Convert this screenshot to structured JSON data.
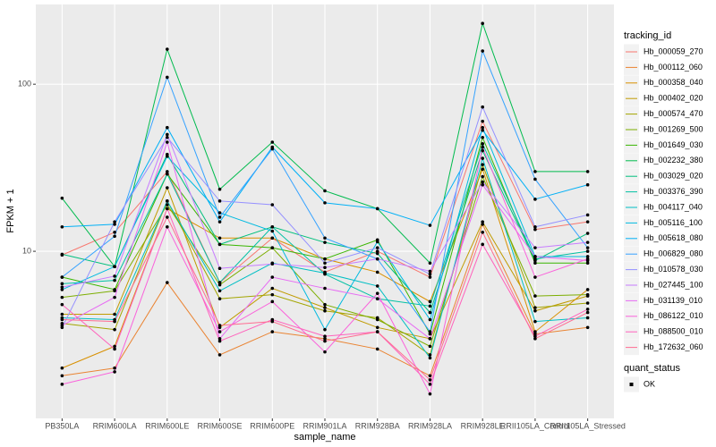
{
  "chart_data": {
    "type": "line",
    "x_label": "sample_name",
    "y_label": "FPKM + 1",
    "categories": [
      "PB350LA",
      "RRIM600LA",
      "RRIM600LE",
      "RRIM600SE",
      "RRIM600PE",
      "RRIM901LA",
      "RRIM928BA",
      "RRIM928LA",
      "RRIM928LE",
      "RRII105LA_Control",
      "RRII105LA_Stressed"
    ],
    "ylim": [
      1,
      300
    ],
    "yticks": [
      10,
      100
    ],
    "log_y": true,
    "grid": true,
    "legend_title": "tracking_id",
    "legend_position": "right",
    "point_legend_title": "quant_status",
    "point_legend_labels": [
      "OK"
    ],
    "point_color": "#000000",
    "series": [
      {
        "name": "Hb_000059_270",
        "color": "#F8766D",
        "values": [
          9.5,
          13,
          30,
          6.5,
          12,
          7.5,
          10,
          7,
          60,
          13.5,
          15
        ]
      },
      {
        "name": "Hb_000112_060",
        "color": "#EA8331",
        "values": [
          1.8,
          2.0,
          6.5,
          2.4,
          3.3,
          3.0,
          2.6,
          1.8,
          14.5,
          3.2,
          3.5
        ]
      },
      {
        "name": "Hb_000358_040",
        "color": "#D89000",
        "values": [
          2.0,
          2.7,
          18,
          12,
          12,
          9,
          7.5,
          5,
          31,
          3.3,
          5.9
        ]
      },
      {
        "name": "Hb_000402_020",
        "color": "#C09B00",
        "values": [
          4.2,
          4.2,
          24,
          3.5,
          6,
          4.6,
          3.5,
          3.0,
          15,
          4.4,
          5.4
        ]
      },
      {
        "name": "Hb_000574_470",
        "color": "#A3A500",
        "values": [
          3.7,
          3.4,
          20,
          5.2,
          5.5,
          4.4,
          4.0,
          2.4,
          33,
          4.6,
          4.9
        ]
      },
      {
        "name": "Hb_001269_500",
        "color": "#7CAE00",
        "values": [
          5.3,
          5.8,
          19,
          6.3,
          10.5,
          4.8,
          3.9,
          2.7,
          28,
          5.4,
          5.5
        ]
      },
      {
        "name": "Hb_001649_030",
        "color": "#39B600",
        "values": [
          7.0,
          5.9,
          29,
          11,
          10.5,
          9,
          11.7,
          3.2,
          48,
          8.5,
          8.5
        ]
      },
      {
        "name": "Hb_002232_380",
        "color": "#00BB4E",
        "values": [
          20.8,
          8.1,
          162,
          23.5,
          45,
          23,
          18,
          8.5,
          231,
          30,
          30
        ]
      },
      {
        "name": "Hb_003029_020",
        "color": "#00BF7D",
        "values": [
          9.6,
          8.1,
          38,
          11,
          14,
          11.3,
          9.7,
          4.3,
          40,
          8.8,
          12.8
        ]
      },
      {
        "name": "Hb_003376_390",
        "color": "#00C1A3",
        "values": [
          6.4,
          6.7,
          29,
          6.5,
          14,
          7.3,
          5.2,
          4.7,
          44,
          9.0,
          10
        ]
      },
      {
        "name": "Hb_004117_040",
        "color": "#00BFC4",
        "values": [
          4.0,
          3.9,
          20,
          5.8,
          8.5,
          7.4,
          6.2,
          2.3,
          36,
          3.8,
          4.0
        ]
      },
      {
        "name": "Hb_005116_100",
        "color": "#00BAE0",
        "values": [
          5.9,
          8.1,
          37,
          17,
          13.2,
          3.4,
          11.4,
          3.9,
          55,
          9.3,
          9.3
        ]
      },
      {
        "name": "Hb_005618_080",
        "color": "#00B0F6",
        "values": [
          14,
          14.5,
          55,
          15,
          42,
          19.5,
          18,
          14.3,
          53,
          20.5,
          25
        ]
      },
      {
        "name": "Hb_006829_080",
        "color": "#35A2FF",
        "values": [
          7.0,
          12.3,
          110,
          16,
          41,
          12,
          9.0,
          3.3,
          158,
          27,
          10.5
        ]
      },
      {
        "name": "Hb_010578_030",
        "color": "#9590FF",
        "values": [
          3.5,
          15,
          48,
          20,
          19,
          8.5,
          10.5,
          7.3,
          73,
          14,
          16.5
        ]
      },
      {
        "name": "Hb_027445_100",
        "color": "#C77CFF",
        "values": [
          6.1,
          7.1,
          50,
          7.9,
          8.4,
          8.0,
          9.0,
          7.6,
          26,
          10.5,
          11.3
        ]
      },
      {
        "name": "Hb_031139_010",
        "color": "#E76BF3",
        "values": [
          3.6,
          5.3,
          45,
          3.0,
          7.0,
          6.0,
          5.2,
          3.0,
          25,
          9.3,
          8.8
        ]
      },
      {
        "name": "Hb_086122_010",
        "color": "#FA62DB",
        "values": [
          1.6,
          1.9,
          14,
          3.3,
          5.0,
          2.5,
          5.6,
          1.4,
          42,
          7.0,
          9.0
        ]
      },
      {
        "name": "Hb_088500_010",
        "color": "#FF62BC",
        "values": [
          4.8,
          2.6,
          18,
          2.9,
          3.9,
          3.1,
          3.3,
          1.6,
          11,
          3.1,
          4.5
        ]
      },
      {
        "name": "Hb_172632_060",
        "color": "#FF6C91",
        "values": [
          3.9,
          3.8,
          16,
          3.6,
          3.8,
          2.9,
          3.3,
          1.7,
          13,
          3.0,
          4.3
        ]
      }
    ]
  }
}
